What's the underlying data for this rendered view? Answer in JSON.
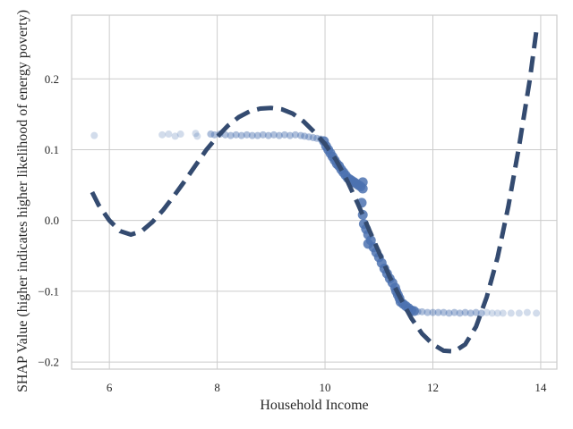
{
  "chart_data": {
    "type": "scatter",
    "title": "",
    "xlabel": "Household Income",
    "ylabel": "SHAP Value (higher indicates higher likelihood of energy poverty)",
    "xlim": [
      5.3,
      14.3
    ],
    "ylim": [
      -0.21,
      0.29
    ],
    "xticks": [
      6,
      8,
      10,
      12,
      14
    ],
    "yticks": [
      -0.2,
      -0.1,
      0.0,
      0.1,
      0.2
    ],
    "ytick_labels": [
      "−0.2",
      "−0.1",
      "0.0",
      "0.1",
      "0.2"
    ],
    "grid": true,
    "colors": {
      "points": "#4c72b0",
      "trend": "#344b70",
      "grid": "#cccccc",
      "frame": "#cccccc"
    },
    "series": [
      {
        "kind": "scatter",
        "points": [
          [
            5.72,
            0.12
          ],
          [
            6.98,
            0.121
          ],
          [
            7.1,
            0.122
          ],
          [
            7.22,
            0.119
          ],
          [
            7.32,
            0.122
          ],
          [
            7.6,
            0.123
          ],
          [
            7.63,
            0.119
          ],
          [
            7.88,
            0.122
          ],
          [
            7.95,
            0.121
          ],
          [
            8.05,
            0.122
          ],
          [
            8.15,
            0.121
          ],
          [
            8.25,
            0.12
          ],
          [
            8.35,
            0.121
          ],
          [
            8.45,
            0.12
          ],
          [
            8.55,
            0.121
          ],
          [
            8.65,
            0.12
          ],
          [
            8.75,
            0.12
          ],
          [
            8.85,
            0.121
          ],
          [
            8.95,
            0.12
          ],
          [
            9.05,
            0.121
          ],
          [
            9.15,
            0.12
          ],
          [
            9.25,
            0.121
          ],
          [
            9.35,
            0.12
          ],
          [
            9.45,
            0.121
          ],
          [
            9.55,
            0.12
          ],
          [
            9.62,
            0.119
          ],
          [
            9.7,
            0.118
          ],
          [
            9.78,
            0.117
          ],
          [
            9.85,
            0.116
          ],
          [
            9.92,
            0.115
          ],
          [
            9.98,
            0.112
          ],
          [
            10.02,
            0.105
          ],
          [
            10.06,
            0.1
          ],
          [
            10.1,
            0.095
          ],
          [
            10.14,
            0.09
          ],
          [
            10.18,
            0.085
          ],
          [
            10.22,
            0.08
          ],
          [
            10.26,
            0.077
          ],
          [
            10.3,
            0.072
          ],
          [
            10.34,
            0.068
          ],
          [
            10.38,
            0.064
          ],
          [
            10.42,
            0.06
          ],
          [
            10.46,
            0.058
          ],
          [
            10.5,
            0.056
          ],
          [
            10.54,
            0.054
          ],
          [
            10.58,
            0.052
          ],
          [
            10.62,
            0.05
          ],
          [
            10.66,
            0.048
          ],
          [
            10.7,
            0.054
          ],
          [
            10.7,
            0.045
          ],
          [
            10.68,
            0.025
          ],
          [
            10.7,
            0.008
          ],
          [
            10.72,
            -0.005
          ],
          [
            10.76,
            -0.012
          ],
          [
            10.8,
            -0.02
          ],
          [
            10.8,
            -0.033
          ],
          [
            10.85,
            -0.028
          ],
          [
            10.9,
            -0.038
          ],
          [
            10.95,
            -0.045
          ],
          [
            11.0,
            -0.052
          ],
          [
            11.05,
            -0.06
          ],
          [
            11.1,
            -0.068
          ],
          [
            11.15,
            -0.075
          ],
          [
            11.2,
            -0.082
          ],
          [
            11.25,
            -0.088
          ],
          [
            11.3,
            -0.095
          ],
          [
            11.32,
            -0.1
          ],
          [
            11.35,
            -0.105
          ],
          [
            11.38,
            -0.11
          ],
          [
            11.4,
            -0.115
          ],
          [
            11.45,
            -0.118
          ],
          [
            11.5,
            -0.121
          ],
          [
            11.55,
            -0.124
          ],
          [
            11.6,
            -0.127
          ],
          [
            11.65,
            -0.128
          ],
          [
            11.72,
            -0.129
          ],
          [
            11.8,
            -0.129
          ],
          [
            11.9,
            -0.13
          ],
          [
            12.0,
            -0.13
          ],
          [
            12.1,
            -0.13
          ],
          [
            12.2,
            -0.13
          ],
          [
            12.3,
            -0.131
          ],
          [
            12.4,
            -0.13
          ],
          [
            12.5,
            -0.131
          ],
          [
            12.6,
            -0.13
          ],
          [
            12.7,
            -0.131
          ],
          [
            12.8,
            -0.13
          ],
          [
            12.9,
            -0.131
          ],
          [
            13.0,
            -0.13
          ],
          [
            13.1,
            -0.131
          ],
          [
            13.2,
            -0.131
          ],
          [
            13.3,
            -0.131
          ],
          [
            13.45,
            -0.131
          ],
          [
            13.6,
            -0.131
          ],
          [
            13.75,
            -0.13
          ],
          [
            13.92,
            -0.131
          ]
        ]
      },
      {
        "kind": "line",
        "style": "dashed",
        "points": [
          [
            5.68,
            0.04
          ],
          [
            5.8,
            0.022
          ],
          [
            6.0,
            0.0
          ],
          [
            6.2,
            -0.015
          ],
          [
            6.4,
            -0.02
          ],
          [
            6.6,
            -0.015
          ],
          [
            6.8,
            -0.002
          ],
          [
            7.0,
            0.015
          ],
          [
            7.2,
            0.035
          ],
          [
            7.4,
            0.056
          ],
          [
            7.6,
            0.078
          ],
          [
            7.8,
            0.1
          ],
          [
            8.0,
            0.118
          ],
          [
            8.2,
            0.134
          ],
          [
            8.4,
            0.146
          ],
          [
            8.6,
            0.154
          ],
          [
            8.8,
            0.158
          ],
          [
            9.0,
            0.159
          ],
          [
            9.2,
            0.157
          ],
          [
            9.4,
            0.151
          ],
          [
            9.6,
            0.14
          ],
          [
            9.8,
            0.125
          ],
          [
            10.0,
            0.108
          ],
          [
            10.2,
            0.086
          ],
          [
            10.4,
            0.058
          ],
          [
            10.6,
            0.025
          ],
          [
            10.8,
            -0.01
          ],
          [
            11.0,
            -0.045
          ],
          [
            11.2,
            -0.08
          ],
          [
            11.4,
            -0.11
          ],
          [
            11.6,
            -0.138
          ],
          [
            11.8,
            -0.16
          ],
          [
            12.0,
            -0.175
          ],
          [
            12.2,
            -0.184
          ],
          [
            12.4,
            -0.185
          ],
          [
            12.6,
            -0.175
          ],
          [
            12.8,
            -0.15
          ],
          [
            13.0,
            -0.108
          ],
          [
            13.2,
            -0.052
          ],
          [
            13.4,
            0.02
          ],
          [
            13.6,
            0.105
          ],
          [
            13.8,
            0.2
          ],
          [
            13.92,
            0.268
          ]
        ]
      }
    ]
  }
}
